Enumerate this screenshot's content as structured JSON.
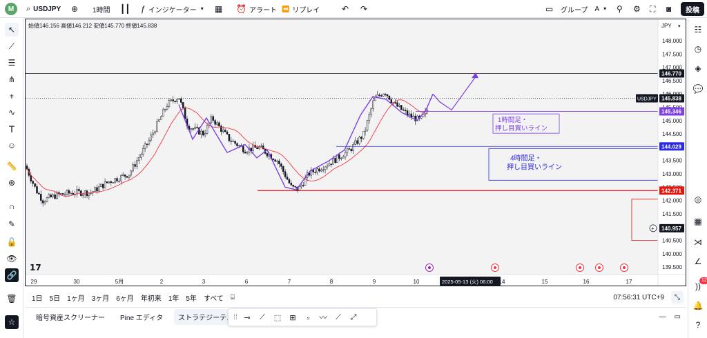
{
  "toolbar": {
    "logo_letter": "M",
    "symbol": "USDJPY",
    "interval": "1時間",
    "indicators_label": "インジケーター",
    "alert_label": "アラート",
    "replay_label": "リプレイ",
    "group_label": "グループ",
    "group_letter": "A",
    "post_label": "投稿"
  },
  "chart": {
    "ohlc_text": "始値146.156 高値146.212 安値145.770 終値145.838",
    "currency": "JPY",
    "price_labels": [
      "148.000",
      "147.500",
      "147.000",
      "146.500",
      "146.000",
      "145.500",
      "145.000",
      "144.500",
      "144.000",
      "143.500",
      "143.000",
      "142.500",
      "142.000",
      "141.500",
      "141.000",
      "140.500",
      "140.000",
      "139.500"
    ],
    "x_labels": [
      "29",
      "30",
      "5月",
      "2",
      "3",
      "6",
      "7",
      "8",
      "9",
      "10",
      "14",
      "15",
      "16",
      "17"
    ],
    "crosshair_date": "2025-05-13 (火)",
    "crosshair_time": "06:00",
    "hline_black_value": "146.770",
    "symbol_tag": "USDJPY",
    "last_price": "145.838",
    "level_1h_value": "145.346",
    "level_4h_value": "144.029",
    "level_red_value": "142.371",
    "cursor_price": "140.957",
    "note_1h_line1": "1時間足・",
    "note_1h_line2": "押し目買いライン",
    "note_4h_line1": "4時間足・",
    "note_4h_line2": "押し目買いライン",
    "colors": {
      "purple": "#7b3fe4",
      "blue": "#2a2ae6",
      "red": "#e3150f",
      "ma": "#f23645"
    }
  },
  "ranges": [
    "1日",
    "5日",
    "1ヶ月",
    "3ヶ月",
    "6ヶ月",
    "年初来",
    "1年",
    "5年",
    "すべて"
  ],
  "clock": "07:56:31 UTC+9",
  "panel_tabs": [
    "暗号資産スクリーナー",
    "Pine エディタ",
    "ストラテジーテスター"
  ],
  "right_badge": "12"
}
